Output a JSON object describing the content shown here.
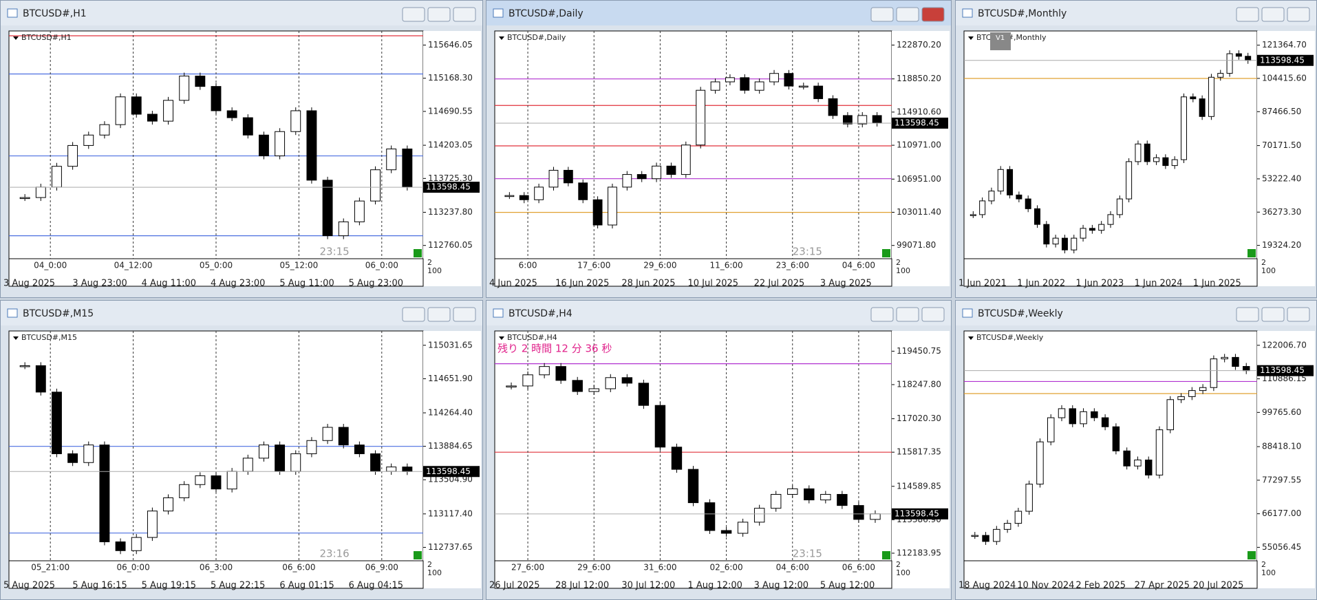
{
  "windows": [
    {
      "title": "BTCUSD#,H1",
      "active": false,
      "ylim": [
        112569,
        115849
      ],
      "yticks": [
        115646.05,
        {
          "value": 115168.3,
          "label": "115168.30"
        },
        114690.55,
        114203.05,
        {
          "value": 113725.3,
          "label": "113725.30"
        },
        {
          "value": 113237.8,
          "label": "113237.80"
        },
        112760.05
      ],
      "price": 113598.45,
      "countdown": "23:15",
      "separators": [
        "04_0:00",
        "04_12:00",
        "05_0:00",
        "05_12:00",
        "06_0:00"
      ],
      "time_labels": [
        "3 Aug 2025",
        "3 Aug 23:00",
        "4 Aug 11:00",
        "4 Aug 23:00",
        "5 Aug 11:00",
        "5 Aug 23:00"
      ],
      "indicator_scale": [
        "2",
        "100"
      ],
      "levels": [
        {
          "value": 115780,
          "color": "#e0303a"
        },
        {
          "value": 115230,
          "color": "#4a6ee0"
        },
        {
          "value": 114050,
          "color": "#4a6ee0"
        },
        {
          "value": 112900,
          "color": "#4a6ee0"
        }
      ],
      "closes": [
        113450,
        113600,
        113900,
        114200,
        114350,
        114500,
        114900,
        114650,
        114550,
        114850,
        115200,
        115050,
        114700,
        114600,
        114350,
        114050,
        114400,
        114700,
        113700,
        112900,
        113100,
        113400,
        113850,
        114150,
        113600
      ]
    },
    {
      "title": "BTCUSD#,Daily",
      "active": true,
      "ylim": [
        97496,
        124544
      ],
      "yticks": [
        {
          "value": 122870.2,
          "label": "122870.20"
        },
        {
          "value": 118850.2,
          "label": "118850.20"
        },
        {
          "value": 114910.6,
          "label": "114910.60"
        },
        {
          "value": 110971,
          "label": "110971.00"
        },
        {
          "value": 106951,
          "label": "106951.00"
        },
        {
          "value": 103011.4,
          "label": "103011.40"
        },
        {
          "value": 99071.8,
          "label": "99071.80"
        }
      ],
      "price": 113598.45,
      "countdown": "23:15",
      "separators": [
        "6:00",
        "17_6:00",
        "29_6:00",
        "11_6:00",
        "23_6:00",
        "04_6:00"
      ],
      "time_labels": [
        "4 Jun 2025",
        "16 Jun 2025",
        "28 Jun 2025",
        "10 Jul 2025",
        "22 Jul 2025",
        "3 Aug 2025"
      ],
      "indicator_scale": [
        "2",
        "100"
      ],
      "levels": [
        {
          "value": 118850,
          "color": "#b030d0"
        },
        {
          "value": 115700,
          "color": "#e0303a"
        },
        {
          "value": 110900,
          "color": "#e0303a"
        },
        {
          "value": 107000,
          "color": "#b030d0"
        },
        {
          "value": 103000,
          "color": "#e0a030"
        }
      ],
      "closes": [
        105000,
        104500,
        106000,
        108000,
        106500,
        104500,
        101500,
        106000,
        107500,
        107000,
        108500,
        107500,
        111000,
        117500,
        118500,
        119000,
        117500,
        118500,
        119500,
        118000,
        118000,
        116500,
        114500,
        113500,
        114500,
        113600
      ]
    },
    {
      "title": "BTCUSD#,Monthly",
      "active": false,
      "ylim": [
        12521,
        128593
      ],
      "badge": "V1",
      "yticks": [
        {
          "value": 121364.7,
          "label": "121364.70"
        },
        {
          "value": 104415.6,
          "label": "104415.60"
        },
        {
          "value": 87466.5,
          "label": "87466.50"
        },
        {
          "value": 70171.5,
          "label": "70171.50"
        },
        {
          "value": 53222.4,
          "label": "53222.40"
        },
        {
          "value": 36273.3,
          "label": "36273.30"
        },
        {
          "value": 19324.2,
          "label": "19324.20"
        }
      ],
      "price": 113598.45,
      "separators": [],
      "time_labels": [
        "1 Jun 2021",
        "1 Jun 2022",
        "1 Jun 2023",
        "1 Jun 2024",
        "1 Jun 2025"
      ],
      "indicator_scale": [
        "2",
        "100"
      ],
      "levels": [
        {
          "value": 104400,
          "color": "#e0a030"
        }
      ],
      "closes": [
        35000,
        42000,
        47000,
        58000,
        45000,
        43000,
        38000,
        30000,
        20000,
        23000,
        17000,
        23000,
        28000,
        27000,
        30000,
        35000,
        43000,
        62000,
        71000,
        62000,
        64000,
        60000,
        63000,
        95000,
        94000,
        85000,
        105000,
        107000,
        117000,
        115700,
        113600
      ]
    },
    {
      "title": "BTCUSD#,M15",
      "active": false,
      "ylim": [
        112585,
        115194
      ],
      "yticks": [
        115031.65,
        {
          "value": 114651.9,
          "label": "114651.90"
        },
        {
          "value": 114264.4,
          "label": "114264.40"
        },
        113884.65,
        {
          "value": 113504.9,
          "label": "113504.90"
        },
        {
          "value": 113117.4,
          "label": "113117.40"
        },
        112737.65
      ],
      "price": 113598.45,
      "countdown": "23:16",
      "separators": [
        "05_21:00",
        "06_0:00",
        "06_3:00",
        "06_6:00",
        "06_9:00"
      ],
      "time_labels": [
        "5 Aug 2025",
        "5 Aug 16:15",
        "5 Aug 19:15",
        "5 Aug 22:15",
        "6 Aug 01:15",
        "6 Aug 04:15"
      ],
      "indicator_scale": [
        "2",
        "100"
      ],
      "levels": [
        {
          "value": 113884,
          "color": "#4a6ee0"
        },
        {
          "value": 112900,
          "color": "#4a6ee0"
        }
      ],
      "closes": [
        114800,
        114500,
        113800,
        113700,
        113900,
        112800,
        112700,
        112850,
        113150,
        113300,
        113450,
        113550,
        113400,
        113600,
        113750,
        113900,
        113600,
        113800,
        113950,
        114100,
        113900,
        113800,
        113600,
        113650,
        113598
      ]
    },
    {
      "title": "BTCUSD#,H4",
      "active": false,
      "ylim": [
        111911,
        120178
      ],
      "message": "残り 2 時間 12 分 36 秒",
      "yticks": [
        119450.75,
        {
          "value": 118247.8,
          "label": "118247.80"
        },
        {
          "value": 117020.3,
          "label": "117020.30"
        },
        115817.35,
        114589.85,
        {
          "value": 113386.9,
          "label": "113386.90"
        },
        112183.95
      ],
      "price": 113598.45,
      "countdown": "23:15",
      "separators": [
        "27_6:00",
        "29_6:00",
        "31_6:00",
        "02_6:00",
        "04_6:00",
        "06_6:00"
      ],
      "time_labels": [
        "26 Jul 2025",
        "28 Jul 12:00",
        "30 Jul 12:00",
        "1 Aug 12:00",
        "3 Aug 12:00",
        "5 Aug 12:00"
      ],
      "indicator_scale": [
        "2",
        "100"
      ],
      "levels": [
        {
          "value": 119000,
          "color": "#b030d0"
        },
        {
          "value": 115817,
          "color": "#e0303a"
        }
      ],
      "closes": [
        118200,
        118600,
        118900,
        118400,
        118000,
        118100,
        118500,
        118300,
        117500,
        116000,
        115200,
        114000,
        113000,
        112900,
        113300,
        113800,
        114300,
        114500,
        114100,
        114300,
        113900,
        113400,
        113600
      ]
    },
    {
      "title": "BTCUSD#,Weekly",
      "active": false,
      "ylim": [
        50593,
        126749
      ],
      "yticks": [
        {
          "value": 122006.7,
          "label": "122006.70"
        },
        110886.15,
        {
          "value": 99765.6,
          "label": "99765.60"
        },
        {
          "value": 88418.1,
          "label": "88418.10"
        },
        77297.55,
        {
          "value": 66177,
          "label": "66177.00"
        },
        55056.45
      ],
      "price": 113598.45,
      "separators": [],
      "time_labels": [
        "18 Aug 2024",
        "10 Nov 2024",
        "2 Feb 2025",
        "27 Apr 2025",
        "20 Jul 2025"
      ],
      "indicator_scale": [
        "2",
        "100"
      ],
      "levels": [
        {
          "value": 106000,
          "color": "#e0a030"
        },
        {
          "value": 110000,
          "color": "#b030d0"
        }
      ],
      "closes": [
        59000,
        57000,
        61000,
        63000,
        67000,
        76000,
        90000,
        98000,
        101000,
        96000,
        100000,
        98000,
        95000,
        87000,
        82000,
        84000,
        79000,
        94000,
        104000,
        105000,
        107000,
        108000,
        117500,
        118000,
        115000,
        113600
      ]
    }
  ]
}
